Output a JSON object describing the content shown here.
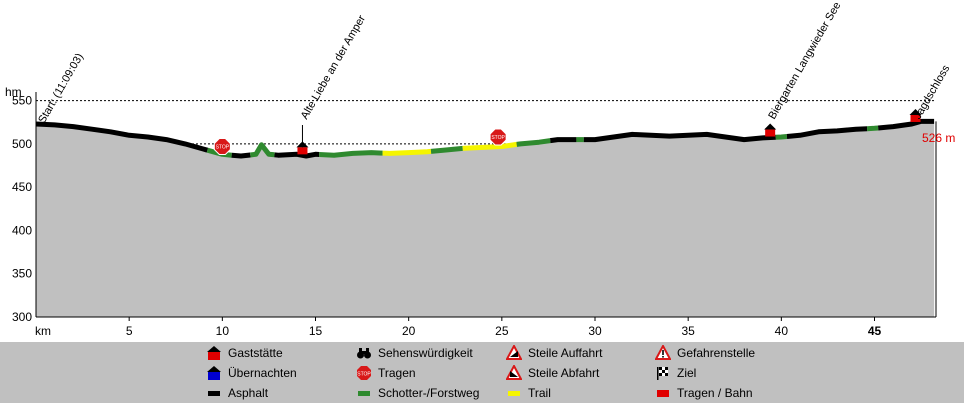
{
  "chart_data": {
    "type": "area",
    "ylabel": "hm",
    "xlabel": "km",
    "ylim": [
      300,
      560
    ],
    "xlim": [
      0,
      48.3
    ],
    "yticks": [
      300,
      350,
      400,
      450,
      500,
      550
    ],
    "xticks": [
      5,
      10,
      15,
      20,
      25,
      30,
      35,
      40,
      45
    ],
    "grid": "dashed horizontal",
    "end_label": "526 m",
    "profile": [
      [
        0,
        523
      ],
      [
        1,
        522
      ],
      [
        2,
        520
      ],
      [
        3,
        517
      ],
      [
        4,
        514
      ],
      [
        5,
        510
      ],
      [
        6,
        508
      ],
      [
        7,
        505
      ],
      [
        8,
        500
      ],
      [
        9,
        494
      ],
      [
        10,
        488
      ],
      [
        11,
        486
      ],
      [
        11.8,
        488
      ],
      [
        12.1,
        499
      ],
      [
        12.5,
        488
      ],
      [
        13,
        487
      ],
      [
        14,
        488
      ],
      [
        14.5,
        486
      ],
      [
        15,
        488
      ],
      [
        16,
        487
      ],
      [
        17,
        489
      ],
      [
        18,
        490
      ],
      [
        19,
        489
      ],
      [
        20,
        490
      ],
      [
        21,
        491
      ],
      [
        22,
        493
      ],
      [
        23,
        495
      ],
      [
        24,
        496
      ],
      [
        25,
        497
      ],
      [
        26,
        500
      ],
      [
        27,
        502
      ],
      [
        28,
        505
      ],
      [
        29,
        505
      ],
      [
        30,
        505
      ],
      [
        31,
        508
      ],
      [
        32,
        511
      ],
      [
        33,
        510
      ],
      [
        34,
        509
      ],
      [
        35,
        510
      ],
      [
        36,
        511
      ],
      [
        37,
        508
      ],
      [
        38,
        505
      ],
      [
        39,
        507
      ],
      [
        40,
        508
      ],
      [
        41,
        510
      ],
      [
        42,
        514
      ],
      [
        43,
        515
      ],
      [
        44,
        517
      ],
      [
        45,
        518
      ],
      [
        46,
        520
      ],
      [
        47,
        523
      ],
      [
        47.5,
        526
      ],
      [
        48.2,
        526
      ]
    ],
    "segments": [
      {
        "surface": "asphalt",
        "from": 0,
        "to": 9.2
      },
      {
        "surface": "gravel",
        "from": 9.2,
        "to": 10.5
      },
      {
        "surface": "asphalt",
        "from": 10.5,
        "to": 11.5
      },
      {
        "surface": "gravel",
        "from": 11.5,
        "to": 12.8
      },
      {
        "surface": "asphalt",
        "from": 12.8,
        "to": 15.2
      },
      {
        "surface": "gravel",
        "from": 15.2,
        "to": 18.6
      },
      {
        "surface": "trail",
        "from": 18.6,
        "to": 21.2
      },
      {
        "surface": "gravel",
        "from": 21.2,
        "to": 22.9
      },
      {
        "surface": "trail",
        "from": 22.9,
        "to": 25.8
      },
      {
        "surface": "gravel",
        "from": 25.8,
        "to": 27.6
      },
      {
        "surface": "asphalt",
        "from": 27.6,
        "to": 29
      },
      {
        "surface": "gravel",
        "from": 29,
        "to": 29.4
      },
      {
        "surface": "asphalt",
        "from": 29.4,
        "to": 39.7
      },
      {
        "surface": "gravel",
        "from": 39.7,
        "to": 40.3
      },
      {
        "surface": "asphalt",
        "from": 40.3,
        "to": 44.6
      },
      {
        "surface": "gravel",
        "from": 44.6,
        "to": 45.2
      },
      {
        "surface": "asphalt",
        "from": 45.2,
        "to": 48.2
      }
    ],
    "waypoints": [
      {
        "km": 0,
        "label": "Start: (11:09:03)",
        "marker": "none"
      },
      {
        "km": 14.3,
        "label": "Alte Liebe an der Amper",
        "marker": "inn"
      },
      {
        "km": 39.4,
        "label": "Biergarten Langwieder See",
        "marker": "inn"
      },
      {
        "km": 47.2,
        "label": "Jagdschloss",
        "marker": "inn"
      }
    ],
    "stop_markers": [
      {
        "km": 10,
        "elev": 497
      },
      {
        "km": 24.8,
        "elev": 508
      }
    ]
  },
  "legend": {
    "gaststaette": "Gaststätte",
    "uebernachten": "Übernachten",
    "asphalt": "Asphalt",
    "sehenswuerdigkeit": "Sehenswürdigkeit",
    "tragen": "Tragen",
    "schotter": "Schotter-/Forstweg",
    "steile_auffahrt": "Steile Auffahrt",
    "steile_abfahrt": "Steile Abfahrt",
    "trail": "Trail",
    "gefahrenstelle": "Gefahrenstelle",
    "ziel": "Ziel",
    "tragen_bahn": "Tragen / Bahn"
  },
  "colors": {
    "area": "#c0c0c0",
    "asphalt": "#000000",
    "gravel": "#2f8a2f",
    "trail": "#f5f500",
    "inn_red": "#e00000",
    "stop_red": "#d81818",
    "label_red": "#e00000",
    "lodging_blue": "#0000d0"
  }
}
